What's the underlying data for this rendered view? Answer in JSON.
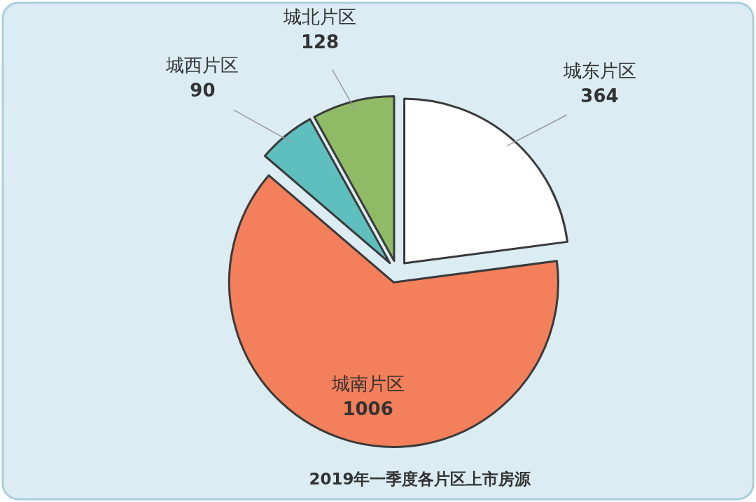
{
  "chart_data": {
    "type": "pie",
    "title": "2019年一季度各片区上市房源",
    "categories": [
      "城东片区",
      "城南片区",
      "城西片区",
      "城北片区"
    ],
    "values": [
      364,
      1006,
      90,
      128
    ],
    "colors": [
      "#ffffff",
      "#f47f5b",
      "#5fbfbf",
      "#8fbb66"
    ],
    "data_labels": true
  }
}
